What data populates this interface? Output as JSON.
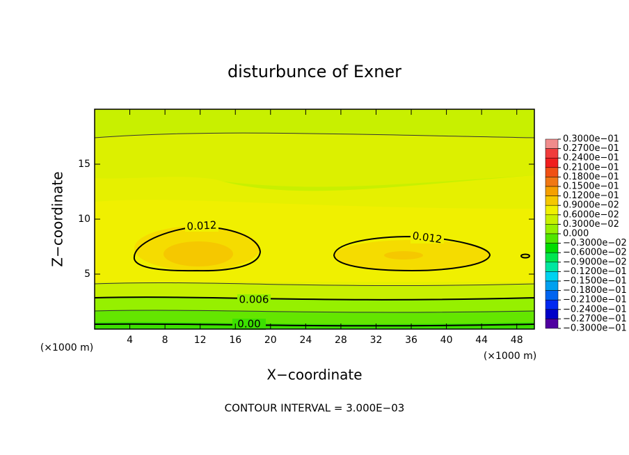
{
  "chart_data": {
    "type": "contour",
    "title": "disturbunce of Exner",
    "x_label": "X−coordinate",
    "y_label": "Z−coordinate",
    "x_unit": "(×1000 m)",
    "footer": "CONTOUR INTERVAL = 3.000E−03",
    "xlim": [
      0,
      50
    ],
    "ylim": [
      0,
      20
    ],
    "xticks": [
      4,
      8,
      12,
      16,
      20,
      24,
      28,
      32,
      36,
      40,
      44,
      48
    ],
    "yticks": [
      5,
      10,
      15
    ],
    "levels": [
      {
        "value": 0.03,
        "label": "0.3000e−01"
      },
      {
        "value": 0.027,
        "label": "0.2700e−01"
      },
      {
        "value": 0.024,
        "label": "0.2400e−01"
      },
      {
        "value": 0.021,
        "label": "0.2100e−01"
      },
      {
        "value": 0.018,
        "label": "0.1800e−01"
      },
      {
        "value": 0.015,
        "label": "0.1500e−01"
      },
      {
        "value": 0.012,
        "label": "0.1200e−01"
      },
      {
        "value": 0.009,
        "label": "0.9000e−02"
      },
      {
        "value": 0.006,
        "label": "0.6000e−02"
      },
      {
        "value": 0.003,
        "label": "0.3000e−02"
      },
      {
        "value": 0,
        "label": "0.000"
      },
      {
        "value": -0.003,
        "label": "−0.3000e−02"
      },
      {
        "value": -0.006,
        "label": "−0.6000e−02"
      },
      {
        "value": -0.009,
        "label": "−0.9000e−02"
      },
      {
        "value": -0.012,
        "label": "−0.1200e−01"
      },
      {
        "value": -0.015,
        "label": "−0.1500e−01"
      },
      {
        "value": -0.018,
        "label": "−0.1800e−01"
      },
      {
        "value": -0.021,
        "label": "−0.2100e−01"
      },
      {
        "value": -0.024,
        "label": "−0.2400e−01"
      },
      {
        "value": -0.027,
        "label": "−0.2700e−01"
      },
      {
        "value": -0.03,
        "label": "−0.3000e−01"
      }
    ],
    "colors": [
      "#f08c8c",
      "#f03c3c",
      "#f01e1e",
      "#f05014",
      "#f07814",
      "#f5a000",
      "#f5c800",
      "#f0f000",
      "#c8f000",
      "#96f000",
      "#50e600",
      "#00dc00",
      "#00e650",
      "#00e6a0",
      "#00d2f0",
      "#00a0f0",
      "#0064f0",
      "#0028f0",
      "#0000c8",
      "#5000a0"
    ],
    "contour_labels": [
      {
        "value": 0.012,
        "label": "0.012"
      },
      {
        "value": 0.012,
        "label": "0.012"
      },
      {
        "value": 0.006,
        "label": "0.006"
      },
      {
        "value": 0,
        "label": "0.00"
      }
    ]
  }
}
